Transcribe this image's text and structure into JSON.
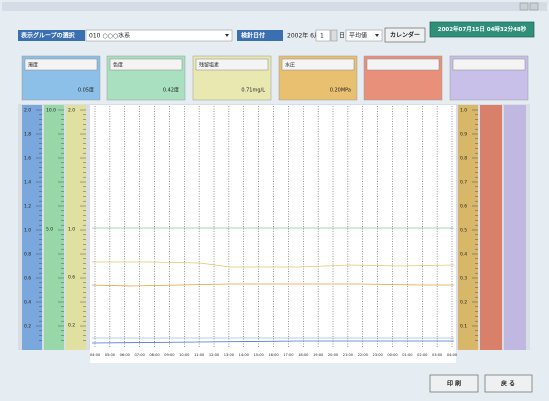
{
  "group_select": {
    "label": "表示グループの選択",
    "value": "010 ○○○水系"
  },
  "date_select": {
    "label": "検針日付",
    "year_month": "2002年 6月",
    "day": "1",
    "day_unit": "日",
    "mode": "平均値",
    "calendar_button": "カレンダー"
  },
  "current_time": "2002年07月15日 04時32分48秒",
  "panels": [
    {
      "label": "濁度",
      "value": "0.05度"
    },
    {
      "label": "色度",
      "value": "0.42度"
    },
    {
      "label": "残留塩素",
      "value": "0.71mg/L"
    },
    {
      "label": "水圧",
      "value": "0.20MPa"
    }
  ],
  "axes": {
    "turbidity": [
      "2.0",
      "1.8",
      "1.6",
      "1.4",
      "1.2",
      "1.0",
      "0.8",
      "0.6",
      "0.4",
      "0.2"
    ],
    "color": [
      "10.0",
      "5.0"
    ],
    "chlorine": [
      "2.0",
      "1.0",
      "0.6",
      "0.2"
    ],
    "pressure": [
      "1.0",
      "0.9",
      "0.8",
      "0.7",
      "0.6",
      "0.5",
      "0.4",
      "0.3",
      "0.2",
      "0.1"
    ]
  },
  "time_labels": [
    "04:00",
    "05:00",
    "06:00",
    "07:00",
    "08:00",
    "09:00",
    "10:00",
    "11:00",
    "12:00",
    "13:00",
    "14:00",
    "15:00",
    "16:00",
    "17:00",
    "18:00",
    "19:00",
    "20:00",
    "21:00",
    "22:00",
    "23:00",
    "00:00",
    "01:00",
    "02:00",
    "03:00",
    "04:00"
  ],
  "buttons": {
    "print": "印 刷",
    "back": "戻 る"
  }
}
